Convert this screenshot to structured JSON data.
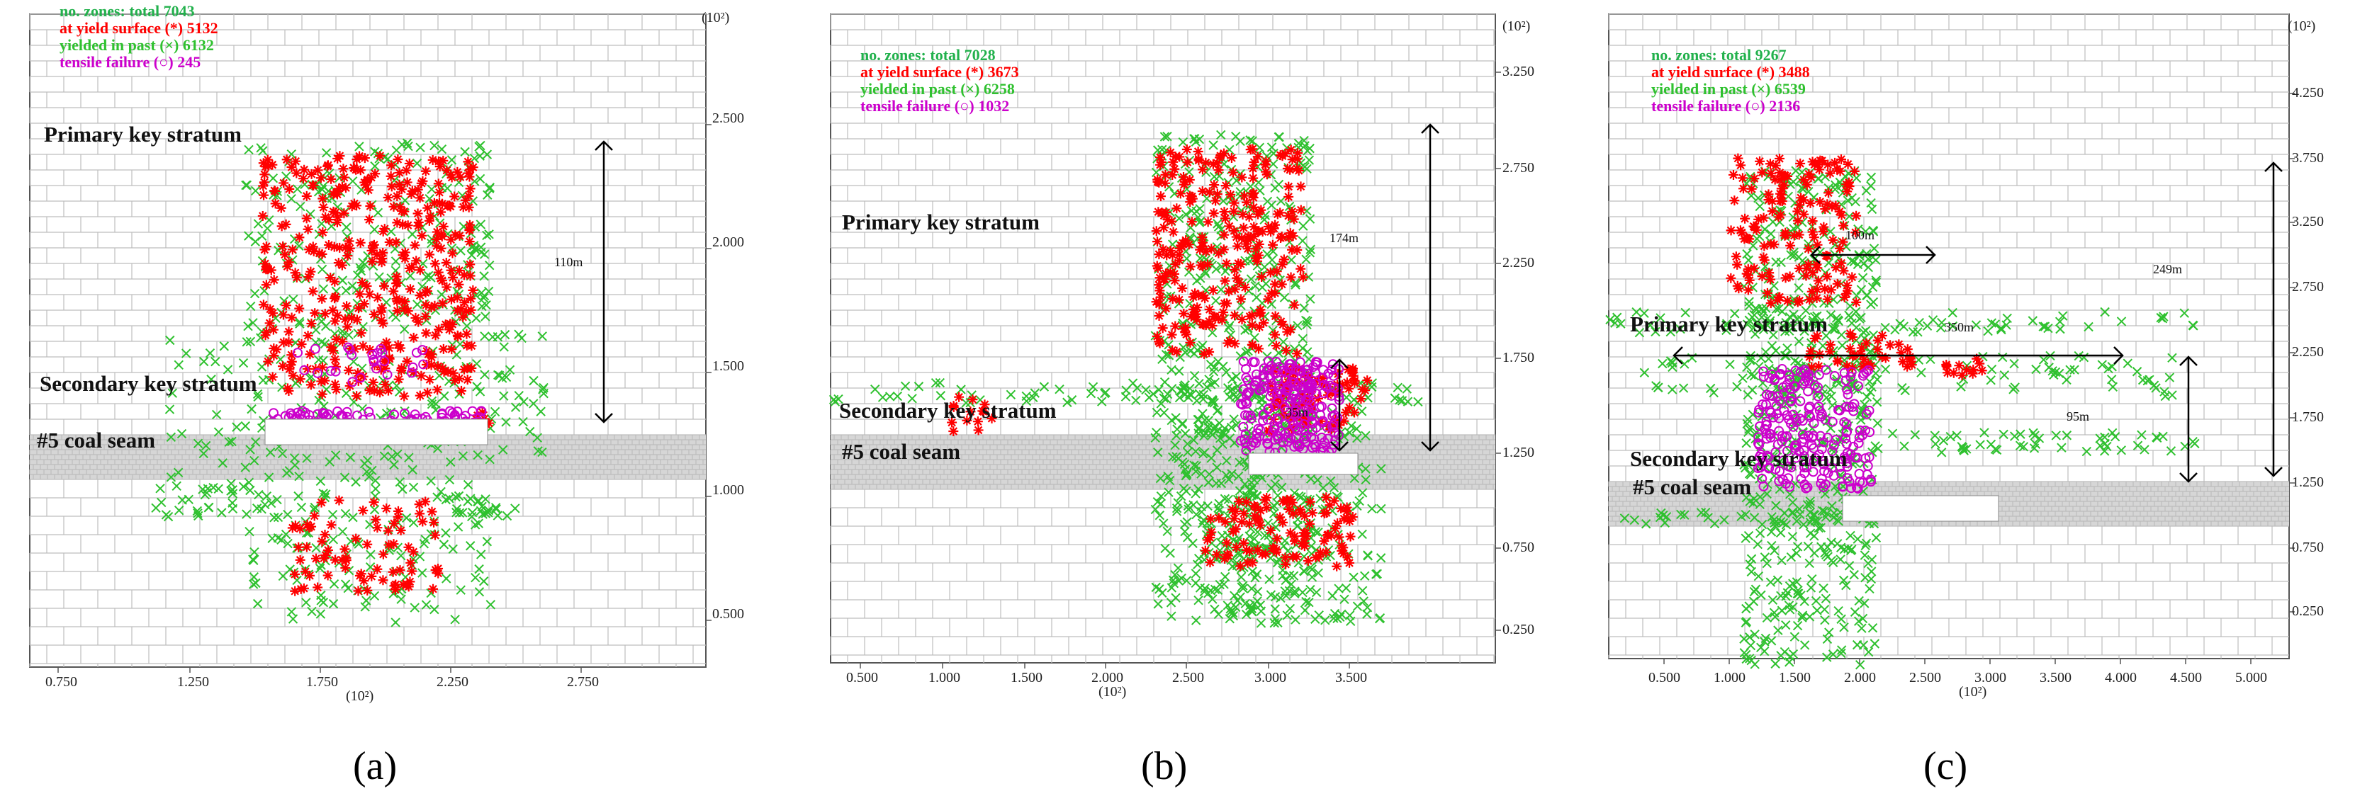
{
  "colors": {
    "zones": "#22b14c",
    "yield": "#ff0000",
    "past": "#2fc12f",
    "tensile": "#cc00cc",
    "grid": "#bdbdbd",
    "coal": "#d6d6d6"
  },
  "panels": [
    {
      "id": "a",
      "caption_open": "(",
      "caption_letter": "a",
      "caption_close": ")",
      "legend": [
        {
          "text": "no. zones: total  7043",
          "color": "#22b14c"
        },
        {
          "text": "at yield surface (*)  5132",
          "color": "#ff0000"
        },
        {
          "text": "yielded in past (×)  6132",
          "color": "#2fc12f"
        },
        {
          "text": "tensile failure (○)  245",
          "color": "#cc00cc"
        }
      ],
      "labels": {
        "primary": "Primary key stratum",
        "secondary": "Secondary key stratum",
        "coal": "#5 coal seam"
      },
      "dims": [
        {
          "text": "110m"
        }
      ],
      "y_unit": "(10²)",
      "x_unit": "(10²)",
      "y_ticks": [
        "2.500",
        "2.000",
        "1.500",
        "1.000",
        "0.500"
      ],
      "x_ticks": [
        "0.750",
        "1.250",
        "1.750",
        "2.250",
        "2.750"
      ]
    },
    {
      "id": "b",
      "caption_open": "(",
      "caption_letter": "b",
      "caption_close": ")",
      "legend": [
        {
          "text": "no. zones: total  7028",
          "color": "#22b14c"
        },
        {
          "text": "at yield surface (*)  3673",
          "color": "#ff0000"
        },
        {
          "text": "yielded in past (×)  6258",
          "color": "#2fc12f"
        },
        {
          "text": "tensile failure (○)  1032",
          "color": "#cc00cc"
        }
      ],
      "labels": {
        "primary": "Primary key stratum",
        "secondary": "Secondary key stratum",
        "coal": "#5 coal seam"
      },
      "dims": [
        {
          "text": "174m"
        },
        {
          "text": "35m"
        }
      ],
      "y_unit": "(10²)",
      "x_unit": "(10²)",
      "y_ticks": [
        "3.250",
        "2.750",
        "2.250",
        "1.750",
        "1.250",
        "0.750",
        "0.250"
      ],
      "x_ticks": [
        "0.500",
        "1.000",
        "1.500",
        "2.000",
        "2.500",
        "3.000",
        "3.500"
      ]
    },
    {
      "id": "c",
      "caption_open": "(",
      "caption_letter": "c",
      "caption_close": ")",
      "legend": [
        {
          "text": "no. zones: total  9267",
          "color": "#22b14c"
        },
        {
          "text": "at yield surface (*)  3488",
          "color": "#ff0000"
        },
        {
          "text": "yielded in past (×)  6539",
          "color": "#2fc12f"
        },
        {
          "text": "tensile failure (○)  2136",
          "color": "#cc00cc"
        }
      ],
      "labels": {
        "primary": "Primary key stratum",
        "secondary": "Secondary key stratum",
        "coal": "#5 coal seam"
      },
      "dims": [
        {
          "text": "249m"
        },
        {
          "text": "100m"
        },
        {
          "text": "350m"
        },
        {
          "text": "95m"
        }
      ],
      "y_unit": "(10²)",
      "x_unit": "(10²)",
      "y_ticks": [
        "4.250",
        "3.750",
        "3.250",
        "2.750",
        "2.250",
        "1.750",
        "1.250",
        "0.750",
        "0.250"
      ],
      "x_ticks": [
        "0.500",
        "1.000",
        "1.500",
        "2.000",
        "2.500",
        "3.000",
        "3.500",
        "4.000",
        "4.500",
        "5.000"
      ]
    }
  ]
}
